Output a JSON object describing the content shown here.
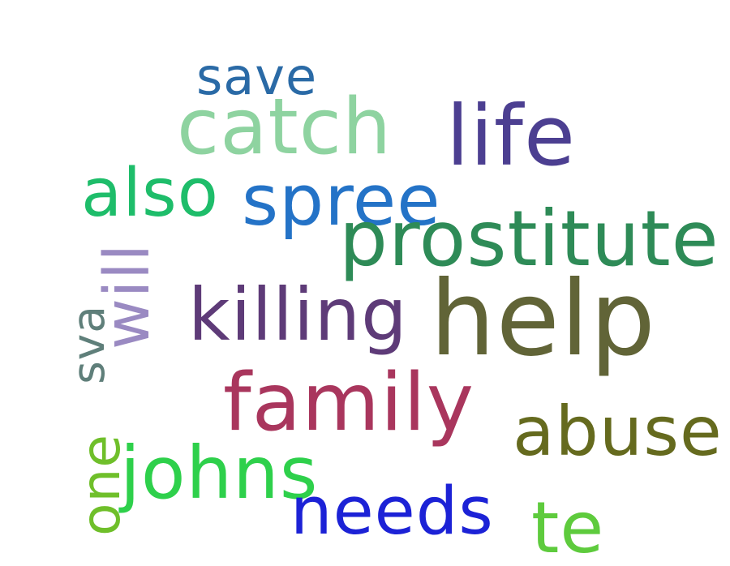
{
  "words": [
    {
      "text": "save",
      "color": "#2a6aa6"
    },
    {
      "text": "catch",
      "color": "#8ed3a0"
    },
    {
      "text": "life",
      "color": "#4c3f91"
    },
    {
      "text": "also",
      "color": "#1ebd6a"
    },
    {
      "text": "spree",
      "color": "#2473c7"
    },
    {
      "text": "prostitute",
      "color": "#2e8b57"
    },
    {
      "text": "will",
      "color": "#9a8ac2"
    },
    {
      "text": "killing",
      "color": "#5e3b78"
    },
    {
      "text": "help",
      "color": "#616437"
    },
    {
      "text": "sva",
      "color": "#5f7f7a"
    },
    {
      "text": "family",
      "color": "#a9365d"
    },
    {
      "text": "abuse",
      "color": "#656a1e"
    },
    {
      "text": "one",
      "color": "#6fbf2a"
    },
    {
      "text": "johns",
      "color": "#2ed04b"
    },
    {
      "text": "needs",
      "color": "#1c22d6"
    },
    {
      "text": "te",
      "color": "#5ecb3d"
    }
  ]
}
